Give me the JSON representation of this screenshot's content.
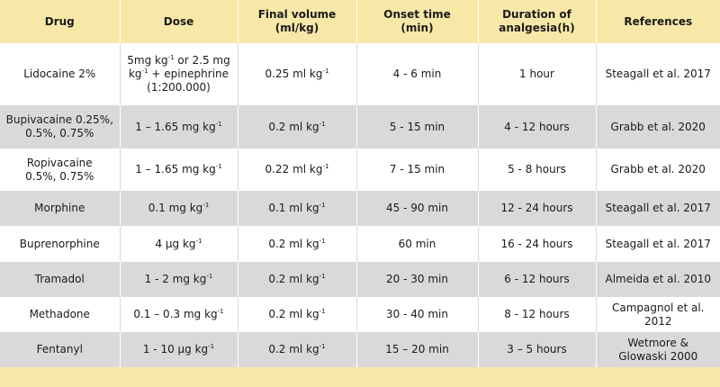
{
  "headers": {
    "drug": "Drug",
    "dose": "Dose",
    "final_volume_line1": "Final volume",
    "final_volume_line2": "(ml/kg)",
    "onset_line1": "Onset time",
    "onset_line2": "(min)",
    "duration_line1": "Duration of",
    "duration_line2": "analgesia(h)",
    "references": "References"
  },
  "rows": [
    {
      "drug": [
        "Lidocaine 2%"
      ],
      "dose": [
        [
          "5mg kg",
          "-1",
          " or 2.5 mg"
        ],
        [
          "kg",
          "-1",
          " + epinephrine"
        ],
        [
          "(1:200.000)",
          "",
          ""
        ]
      ],
      "volume": [
        "0.25 ml kg",
        "-1"
      ],
      "onset": "4 - 6 min",
      "duration": "1 hour",
      "reference": [
        "Steagall et al. 2017"
      ]
    },
    {
      "drug": [
        "Bupivacaine 0.25%,",
        "0.5%, 0.75%"
      ],
      "dose": [
        [
          "1 – 1.65 mg kg",
          "-1",
          ""
        ]
      ],
      "volume": [
        "0.2 ml kg",
        "-1"
      ],
      "onset": "5 - 15 min",
      "duration": "4 - 12 hours",
      "reference": [
        "Grabb et al. 2020"
      ]
    },
    {
      "drug": [
        "Ropivacaine",
        "0.5%, 0.75%"
      ],
      "dose": [
        [
          "1 – 1.65 mg kg",
          "-1",
          ""
        ]
      ],
      "volume": [
        "0.22 ml kg",
        "-1"
      ],
      "onset": "7 - 15 min",
      "duration": "5 - 8 hours",
      "reference": [
        "Grabb et al. 2020"
      ]
    },
    {
      "drug": [
        "Morphine"
      ],
      "dose": [
        [
          "0.1 mg kg",
          "-1",
          ""
        ]
      ],
      "volume": [
        "0.1 ml kg",
        "-1"
      ],
      "onset": "45 - 90 min",
      "duration": "12 - 24 hours",
      "reference": [
        "Steagall et al. 2017"
      ]
    },
    {
      "drug": [
        "Buprenorphine"
      ],
      "dose": [
        [
          "4 μg kg",
          "-1",
          ""
        ]
      ],
      "volume": [
        "0.2 ml kg",
        "-1"
      ],
      "onset": "60 min",
      "duration": "16 - 24 hours",
      "reference": [
        "Steagall et al. 2017"
      ]
    },
    {
      "drug": [
        "Tramadol"
      ],
      "dose": [
        [
          "1 - 2 mg kg",
          "-1",
          ""
        ]
      ],
      "volume": [
        "0.2 ml kg",
        "-1"
      ],
      "onset": "20 - 30 min",
      "duration": "6 - 12 hours",
      "reference": [
        "Almeida et al. 2010"
      ]
    },
    {
      "drug": [
        "Methadone"
      ],
      "dose": [
        [
          "0.1 – 0.3 mg kg",
          "-1",
          ""
        ]
      ],
      "volume": [
        "0.2 ml kg",
        "-1"
      ],
      "onset": "30 - 40 min",
      "duration": "8 - 12 hours",
      "reference": [
        "Campagnol et al. 2012"
      ]
    },
    {
      "drug": [
        "Fentanyl"
      ],
      "dose": [
        [
          "1 - 10 μg kg",
          "-1",
          ""
        ]
      ],
      "volume": [
        "0.2 ml kg",
        "-1"
      ],
      "onset": "15 – 20 min",
      "duration": "3 – 5 hours",
      "reference": [
        "Wetmore &",
        "Glowaski 2000"
      ]
    }
  ],
  "colors": {
    "header_bg": "#f7e8a8",
    "row_white": "#ffffff",
    "row_gray": "#d9d9d9"
  }
}
